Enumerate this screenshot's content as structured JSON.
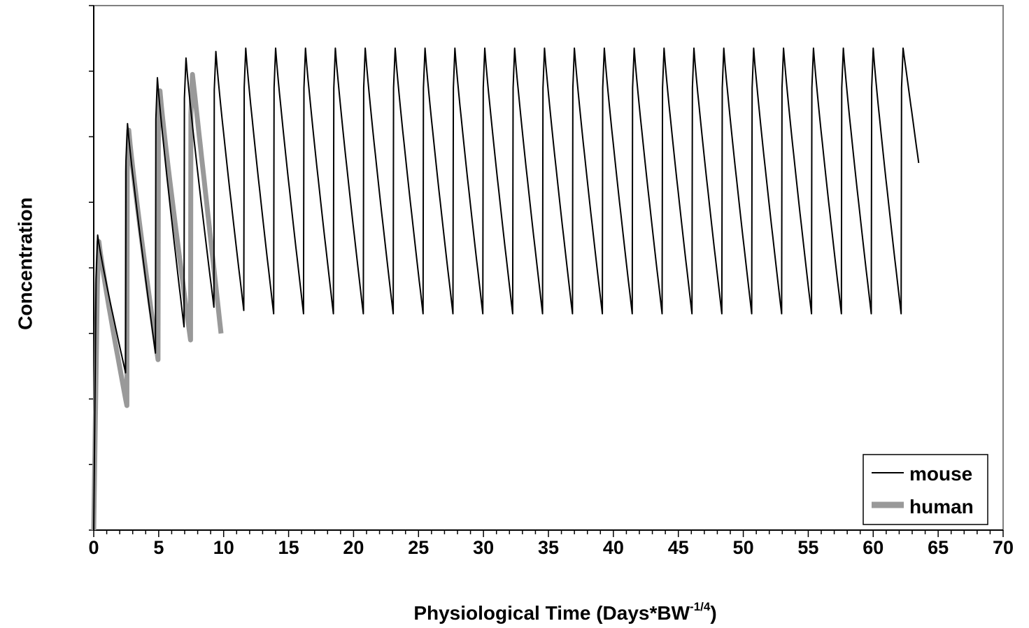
{
  "chart_data": {
    "type": "line",
    "xlabel": "Physiological Time (Days*BW",
    "xlabel_superscript": "-1/4",
    "xlabel_suffix": ")",
    "ylabel": "Concentration",
    "xlim": [
      0,
      70
    ],
    "ylim": [
      0,
      8
    ],
    "x_ticks": [
      0,
      5,
      10,
      15,
      20,
      25,
      30,
      35,
      40,
      45,
      50,
      55,
      60,
      65,
      70
    ],
    "y_ticks_labeled": false,
    "grid": false,
    "legend_position": "bottom-right",
    "series": [
      {
        "name": "mouse",
        "color": "#000000",
        "peaks_x": [
          0.3,
          2.6,
          4.9,
          7.1,
          9.4,
          11.7,
          14.0,
          16.3,
          18.6,
          20.9,
          23.2,
          25.5,
          27.8,
          30.1,
          32.4,
          34.7,
          37.0,
          39.3,
          41.6,
          43.9,
          46.2,
          48.5,
          50.8,
          53.1,
          55.4,
          57.7,
          60.0,
          62.3
        ],
        "peaks_y": [
          4.5,
          6.2,
          6.9,
          7.2,
          7.3,
          7.35,
          7.35,
          7.35,
          7.35,
          7.35,
          7.35,
          7.35,
          7.35,
          7.35,
          7.35,
          7.35,
          7.35,
          7.35,
          7.35,
          7.35,
          7.35,
          7.35,
          7.35,
          7.35,
          7.35,
          7.35,
          7.35,
          7.35
        ],
        "troughs_y": [
          2.4,
          2.7,
          3.1,
          3.4,
          3.35,
          3.3,
          3.3,
          3.3,
          3.3,
          3.3,
          3.3,
          3.3,
          3.3,
          3.3,
          3.3,
          3.3,
          3.3,
          3.3,
          3.3,
          3.3,
          3.3,
          3.3,
          3.3,
          3.3,
          3.3,
          3.3,
          3.3,
          3.3
        ],
        "end_x": 63.5,
        "end_y": 5.6
      },
      {
        "name": "human",
        "color": "#999999",
        "peaks_x": [
          0.4,
          2.7,
          5.1,
          7.6
        ],
        "peaks_y": [
          4.4,
          6.1,
          6.7,
          6.95
        ],
        "troughs_y": [
          1.9,
          2.6,
          2.9
        ],
        "end_x": 9.8,
        "end_y": 3.0
      }
    ]
  }
}
